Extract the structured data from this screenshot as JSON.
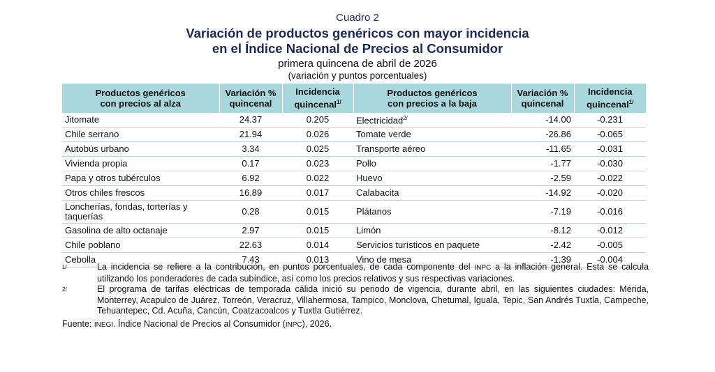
{
  "header": {
    "label": "Cuadro 2",
    "title_line1": "Variación de productos genéricos con mayor incidencia",
    "title_line2": "en el Índice Nacional de Precios al Consumidor",
    "subtitle": "primera quincena de abril de 2026",
    "units": "(variación y puntos porcentuales)"
  },
  "columns": {
    "up_product_1": "Productos genéricos",
    "up_product_2": "con precios al alza",
    "var_1": "Variación %",
    "var_2": "quincenal",
    "inc_1": "Incidencia",
    "inc_2": "quincenal",
    "inc_sup": "1/",
    "down_product_1": "Productos genéricos",
    "down_product_2": "con precios a la baja"
  },
  "rows": [
    {
      "up": "Jitomate",
      "up_var": "24.37",
      "up_inc": "0.205",
      "down": "Electricidad",
      "down_sup": "2/",
      "down_var": "-14.00",
      "down_inc": "-0.231"
    },
    {
      "up": "Chile serrano",
      "up_var": "21.94",
      "up_inc": "0.026",
      "down": "Tomate verde",
      "down_var": "-26.86",
      "down_inc": "-0.065"
    },
    {
      "up": "Autobús urbano",
      "up_var": "3.34",
      "up_inc": "0.025",
      "down": "Transporte aéreo",
      "down_var": "-11.65",
      "down_inc": "-0.031"
    },
    {
      "up": "Vivienda propia",
      "up_var": "0.17",
      "up_inc": "0.023",
      "down": "Pollo",
      "down_var": "-1.77",
      "down_inc": "-0.030"
    },
    {
      "up": "Papa y otros tubérculos",
      "up_var": "6.92",
      "up_inc": "0.022",
      "down": "Huevo",
      "down_var": "-2.59",
      "down_inc": "-0.022"
    },
    {
      "up": "Otros chiles frescos",
      "up_var": "16.89",
      "up_inc": "0.017",
      "down": "Calabacita",
      "down_var": "-14.92",
      "down_inc": "-0.020"
    },
    {
      "up_line1": "Loncherías, fondas, torterías y",
      "up_line2": "taquerías",
      "up_var": "0.28",
      "up_inc": "0.015",
      "down": "Plátanos",
      "down_var": "-7.19",
      "down_inc": "-0.016"
    },
    {
      "up": "Gasolina de alto octanaje",
      "up_var": "2.97",
      "up_inc": "0.015",
      "down": "Limón",
      "down_var": "-8.12",
      "down_inc": "-0.012"
    },
    {
      "up": "Chile poblano",
      "up_var": "22.63",
      "up_inc": "0.014",
      "down": "Servicios turísticos en paquete",
      "down_var": "-2.42",
      "down_inc": "-0.005"
    },
    {
      "up": "Cebolla",
      "up_var": "7.43",
      "up_inc": "0.013",
      "down": "Vino de mesa",
      "down_var": "-1.39",
      "down_inc": "-0.004"
    }
  ],
  "notes": {
    "n1_mark": "1/",
    "n1_a": "La incidencia se refiere a la contribución, en puntos porcentuales, de cada componente del",
    "n1_inpc": "INPC",
    "n1_b": "a la inflación general. Esta se calcula utilizando los ponderadores de cada subíndice, así como los precios relativos y sus respectivas variaciones.",
    "n2_mark": "2/",
    "n2": "El programa de tarifas eléctricas de temporada cálida inició su periodo de vigencia, durante abril, en las siguientes ciudades: Mérida, Monterrey, Acapulco de Juárez, Torreón, Veracruz, Villahermosa, Tampico, Monclova, Chetumal, Iguala, Tepic, San Andrés Tuxtla, Campeche, Tehuantepec, Cd. Acuña, Cancún, Coatzacoalcos y Tuxtla Gutiérrez.",
    "source_label": "Fuente:",
    "source_inegi": "INEGI",
    "source_a": ". Índice Nacional de Precios al Consumidor (",
    "source_inpc": "INPC",
    "source_b": "), 2026."
  }
}
